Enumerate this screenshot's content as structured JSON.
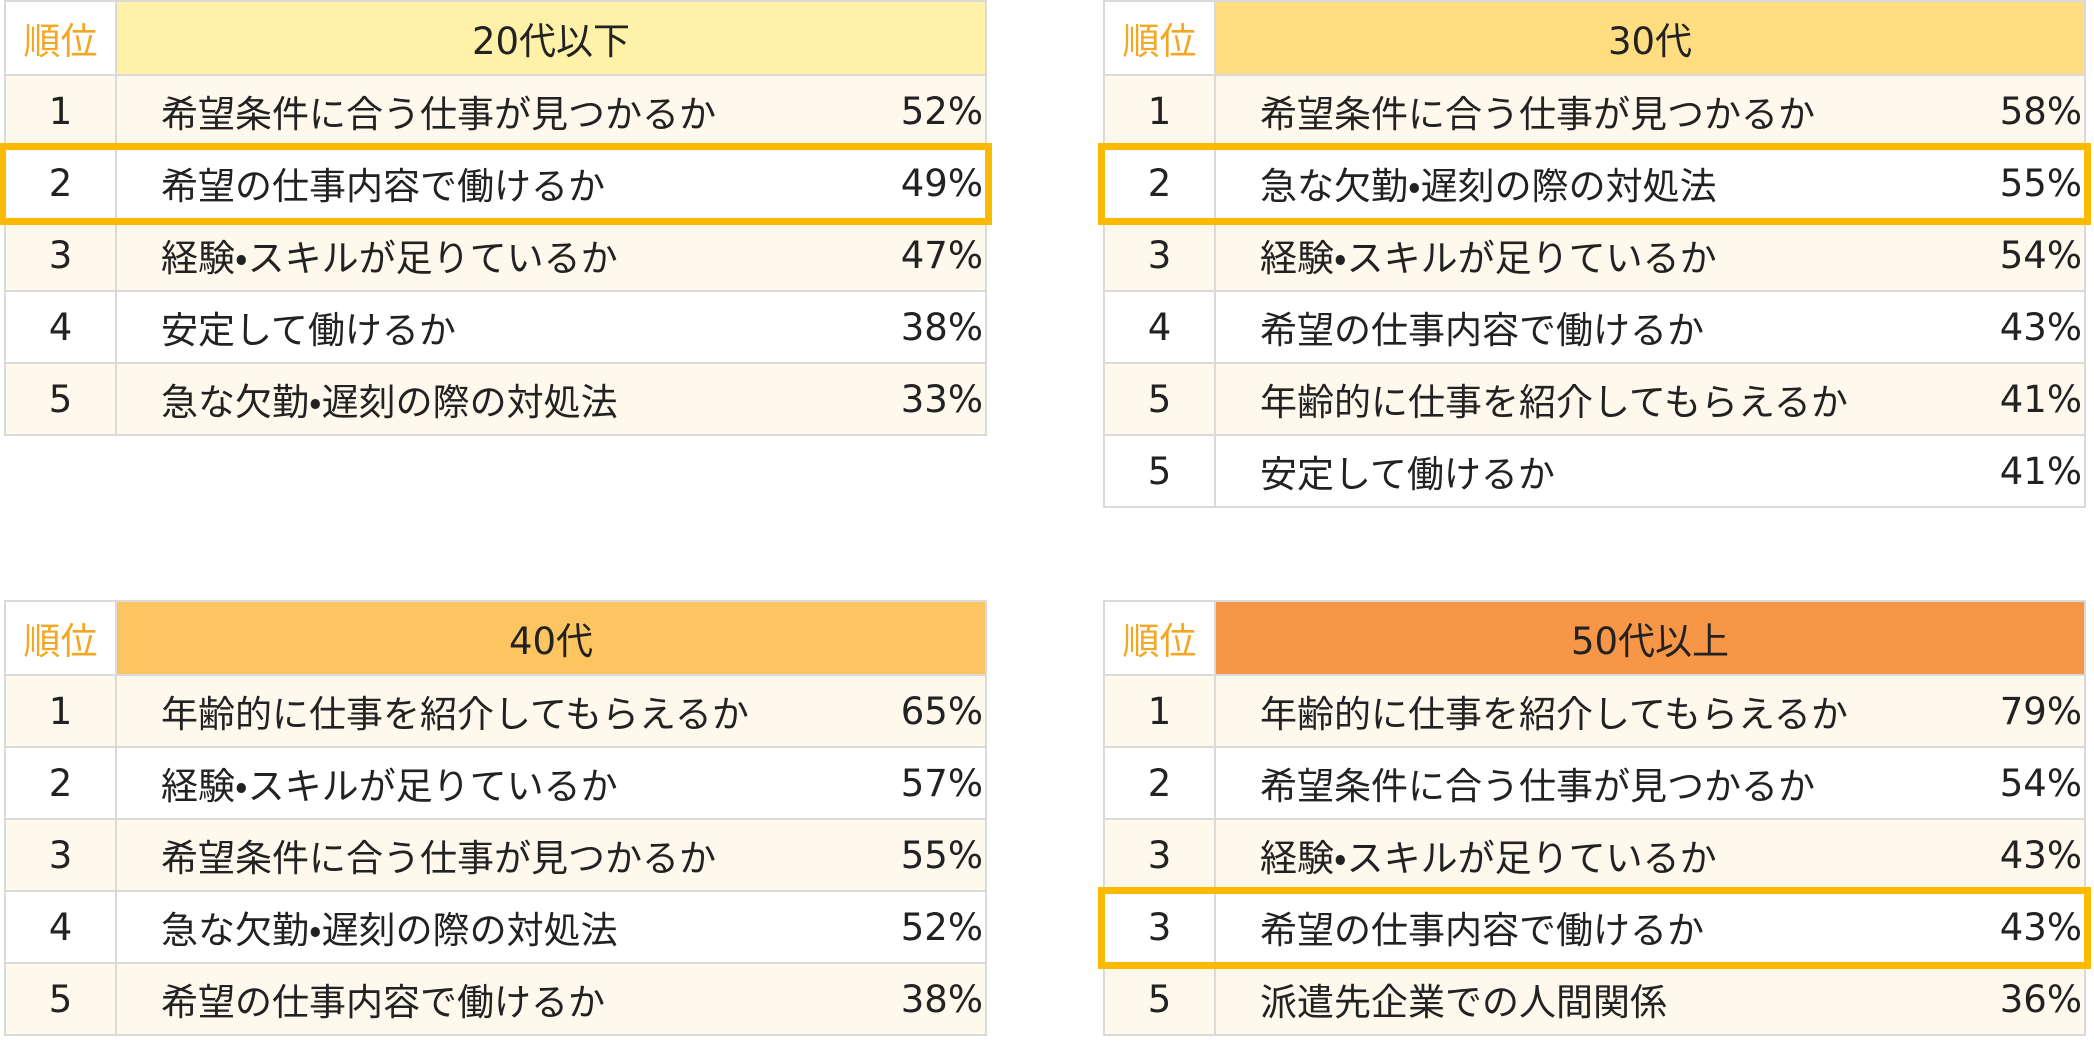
{
  "tables": [
    {
      "rank_header": "順位",
      "title": "20代以下",
      "header_color": "#fff2a8",
      "highlight_row": 1,
      "rows": [
        [
          "1",
          "希望条件に合う仕事が見つかるか",
          "52%"
        ],
        [
          "2",
          "希望の仕事内容で働けるか",
          "49%"
        ],
        [
          "3",
          "経験・スキルが足りているか",
          "47%"
        ],
        [
          "4",
          "安定して働けるか",
          "38%"
        ],
        [
          "5",
          "急な欠勤・遅刻の際の対処法",
          "33%"
        ]
      ]
    },
    {
      "rank_header": "順位",
      "title": "30代",
      "header_color": "#ffdd80",
      "highlight_row": 1,
      "rows": [
        [
          "1",
          "希望条件に合う仕事が見つかるか",
          "58%"
        ],
        [
          "2",
          "急な欠勤・遅刻の際の対処法",
          "55%"
        ],
        [
          "3",
          "経験・スキルが足りているか",
          "54%"
        ],
        [
          "4",
          "希望の仕事内容で働けるか",
          "43%"
        ],
        [
          "5",
          "年齢的に仕事を紹介してもらえるか",
          "41%"
        ],
        [
          "5",
          "安定して働けるか",
          "41%"
        ]
      ]
    },
    {
      "rank_header": "順位",
      "title": "40代",
      "header_color": "#fdc55f",
      "highlight_row": null,
      "rows": [
        [
          "1",
          "年齢的に仕事を紹介してもらえるか",
          "65%"
        ],
        [
          "2",
          "経験・スキルが足りているか",
          "57%"
        ],
        [
          "3",
          "希望条件に合う仕事が見つかるか",
          "55%"
        ],
        [
          "4",
          "急な欠勤・遅刻の際の対処法",
          "52%"
        ],
        [
          "5",
          "希望の仕事内容で働けるか",
          "38%"
        ]
      ]
    },
    {
      "rank_header": "順位",
      "title": "50代以上",
      "header_color": "#f79646",
      "highlight_row": 3,
      "rows": [
        [
          "1",
          "年齢的に仕事を紹介してもらえるか",
          "79%"
        ],
        [
          "2",
          "希望条件に合う仕事が見つかるか",
          "54%"
        ],
        [
          "3",
          "経験・スキルが足りているか",
          "43%"
        ],
        [
          "3",
          "希望の仕事内容で働けるか",
          "43%"
        ],
        [
          "5",
          "派遣先企業での人間関係",
          "36%"
        ]
      ]
    }
  ]
}
